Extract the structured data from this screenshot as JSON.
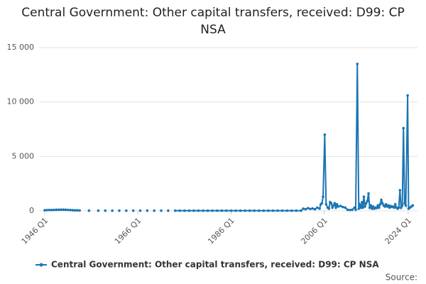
{
  "chart_data": {
    "type": "line",
    "title": "Central Government: Other capital transfers, received: D99: CP NSA",
    "x": [
      1946,
      1946.5,
      1947,
      1947.5,
      1948,
      1948.5,
      1949,
      1949.5,
      1950,
      1950.5,
      1951,
      1951.5,
      1952,
      1952.5,
      1953,
      1953.5,
      1954.25,
      1955.5,
      1956.2,
      1957.5,
      1958.2,
      1959,
      1959.7,
      1960.5,
      1961.2,
      1962,
      1962.7,
      1963.5,
      1964.2,
      1965,
      1965.7,
      1966.5,
      1967.2,
      1968,
      1968.7,
      1969.5,
      1970.2,
      1971,
      1971.7,
      1972.5,
      1973.2,
      1974,
      1975,
      1976,
      1977,
      1978,
      1979,
      1980,
      1981,
      1982,
      1983,
      1984,
      1985,
      1986,
      1987,
      1988,
      1989,
      1990,
      1991,
      1992,
      1993,
      1994,
      1995,
      1996,
      1997,
      1998,
      1999,
      2000,
      2001,
      2001.5,
      2002,
      2002.5,
      2003,
      2003.5,
      2004,
      2004.5,
      2005,
      2005.25,
      2005.5,
      2005.75,
      2006.1,
      2006.4,
      2006.75,
      2007,
      2007.25,
      2007.5,
      2007.75,
      2008,
      2008.25,
      2008.5,
      2008.75,
      2009,
      2009.5,
      2010,
      2010.5,
      2011,
      2011.5,
      2012,
      2012.5,
      2012.75,
      2013.1,
      2013.4,
      2013.6,
      2013.9,
      2014.1,
      2014.3,
      2014.5,
      2014.75,
      2015,
      2015.25,
      2015.5,
      2015.75,
      2016,
      2016.25,
      2016.5,
      2016.75,
      2017,
      2017.25,
      2017.5,
      2017.75,
      2018,
      2018.25,
      2018.5,
      2018.75,
      2019,
      2019.25,
      2019.5,
      2019.75,
      2020,
      2020.25,
      2020.5,
      2020.75,
      2021,
      2021.25,
      2021.5,
      2021.75,
      2022,
      2022.25,
      2022.5,
      2022.75,
      2023,
      2023.25,
      2023.5,
      2023.9,
      2024.1,
      2024.4,
      2024.7,
      2025
    ],
    "series": [
      {
        "name": "Central Government: Other capital transfers, received: D99: CP NSA",
        "color": "#1b75b3",
        "values": [
          60,
          70,
          80,
          80,
          90,
          100,
          100,
          110,
          110,
          100,
          90,
          80,
          60,
          50,
          50,
          40,
          null,
          20,
          null,
          20,
          null,
          20,
          null,
          20,
          null,
          20,
          null,
          20,
          null,
          20,
          null,
          20,
          null,
          20,
          null,
          20,
          null,
          20,
          null,
          20,
          null,
          20,
          20,
          20,
          20,
          20,
          20,
          20,
          20,
          20,
          20,
          20,
          20,
          20,
          20,
          20,
          20,
          20,
          20,
          20,
          20,
          20,
          20,
          20,
          20,
          20,
          20,
          20,
          20,
          200,
          150,
          250,
          180,
          220,
          150,
          300,
          200,
          600,
          700,
          1300,
          7000,
          600,
          300,
          200,
          800,
          700,
          300,
          500,
          700,
          300,
          600,
          400,
          450,
          350,
          300,
          100,
          80,
          100,
          300,
          100,
          13500,
          200,
          600,
          300,
          800,
          300,
          1300,
          400,
          700,
          900,
          1600,
          300,
          500,
          200,
          400,
          200,
          300,
          250,
          500,
          300,
          600,
          1000,
          700,
          500,
          400,
          600,
          400,
          500,
          300,
          450,
          350,
          400,
          300,
          600,
          300,
          200,
          300,
          1900,
          300,
          500,
          7600,
          700,
          500,
          10600,
          200,
          300,
          400,
          500
        ]
      }
    ],
    "xlim": [
      1946,
      2025.25
    ],
    "xticks": [
      {
        "value": 1946,
        "label": "1946 Q1"
      },
      {
        "value": 1966,
        "label": "1966 Q1"
      },
      {
        "value": 1986,
        "label": "1986 Q1"
      },
      {
        "value": 2006,
        "label": "2006 Q1"
      },
      {
        "value": 2024,
        "label": "2024 Q1"
      }
    ],
    "ylim": [
      0,
      15000
    ],
    "yticks": [
      0,
      {
        "value": 5000,
        "label": "5 000"
      },
      {
        "value": 10000,
        "label": "10 000"
      },
      {
        "value": 15000,
        "label": "15 000"
      }
    ],
    "grid": true,
    "source": "Source:"
  }
}
